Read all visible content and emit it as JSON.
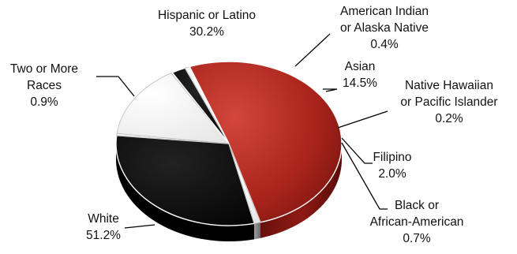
{
  "chart_data": {
    "type": "pie",
    "style": "3d-tilted",
    "title": "",
    "slices": [
      {
        "name": "Hispanic or Latino",
        "value": 30.2,
        "label": "30.2%",
        "color": "#080808"
      },
      {
        "name": "American Indian or Alaska Native",
        "value": 0.4,
        "label": "0.4%",
        "color": "#ffffff"
      },
      {
        "name": "Asian",
        "value": 14.5,
        "label": "14.5%",
        "color": "#ffffff"
      },
      {
        "name": "Native Hawaiian or Pacific Islander",
        "value": 0.2,
        "label": "0.2%",
        "color": "#ffffff"
      },
      {
        "name": "Filipino",
        "value": 2.0,
        "label": "2.0%",
        "color": "#0a0a0a"
      },
      {
        "name": "Black or African-American",
        "value": 0.7,
        "label": "0.7%",
        "color": "#ffffff"
      },
      {
        "name": "White",
        "value": 51.2,
        "label": "51.2%",
        "color": "#b3281f"
      },
      {
        "name": "Two or More Races",
        "value": 0.9,
        "label": "0.9%",
        "color": "#ffffff"
      }
    ],
    "labels": [
      {
        "lines": [
          "Hispanic or Latino",
          "30.2%"
        ]
      },
      {
        "lines": [
          "American Indian",
          "or Alaska Native",
          "0.4%"
        ]
      },
      {
        "lines": [
          "Asian",
          "14.5%"
        ]
      },
      {
        "lines": [
          "Native Hawaiian",
          "or Pacific Islander",
          "0.2%"
        ]
      },
      {
        "lines": [
          "Filipino",
          "2.0%"
        ]
      },
      {
        "lines": [
          "Black or",
          "African-American",
          "0.7%"
        ]
      },
      {
        "lines": [
          "White",
          "51.2%"
        ]
      },
      {
        "lines": [
          "Two or More",
          "Races",
          "0.9%"
        ]
      }
    ]
  }
}
